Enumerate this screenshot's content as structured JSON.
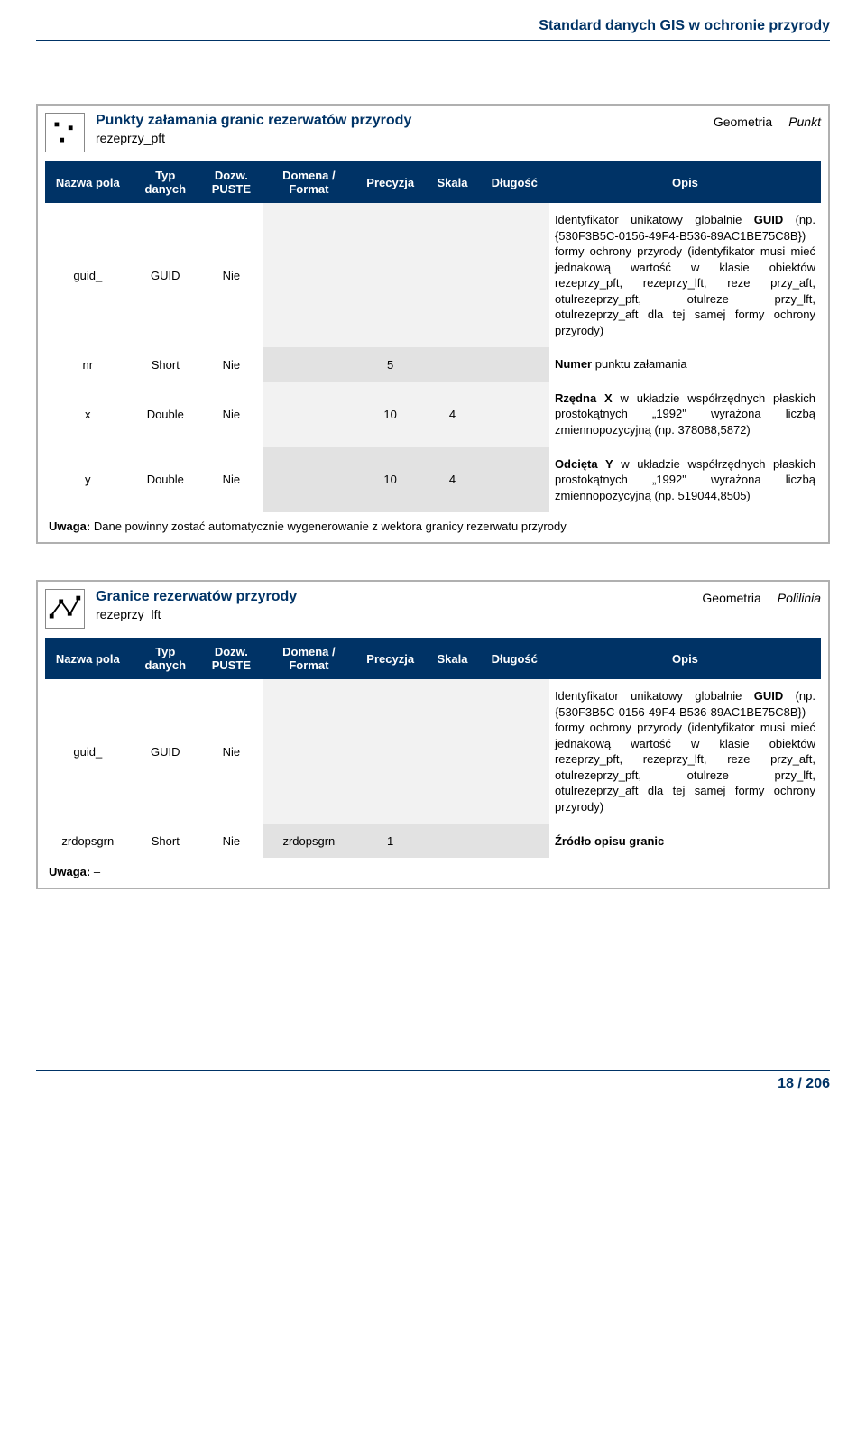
{
  "header": {
    "title": "Standard danych GIS w ochronie przyrody"
  },
  "footer": {
    "page": "18 / 206"
  },
  "columns": {
    "nazwa": "Nazwa pola",
    "typ": "Typ danych",
    "dozw": "Dozw. PUSTE",
    "domena": "Domena / Format",
    "precyzja": "Precyzja",
    "skala": "Skala",
    "dlugosc": "Długość",
    "opis": "Opis"
  },
  "geom_word": "Geometria",
  "sections": [
    {
      "icon": "point",
      "title": "Punkty załamania granic rezerwatów przyrody",
      "code": "rezeprzy_pft",
      "geom_type": "Punkt",
      "rows": [
        {
          "nazwa": "guid_",
          "typ": "GUID",
          "dozw": "Nie",
          "domena": "",
          "precyzja": "",
          "skala": "",
          "dlugosc": "",
          "opis_html": "Identyfikator unikatowy globalnie <b>GUID</b> (np. {530F3B5C-0156-49F4-B536-89AC1BE75C8B}) formy ochrony przyrody (identyfikator musi mieć jednakową wartość w klasie obiektów rezeprzy_pft, rezeprzy_lft, reze przy_aft, otulrezeprzy_pft, otulreze przy_lft, otulrezeprzy_aft dla tej samej formy ochrony przyrody)"
        },
        {
          "nazwa": "nr",
          "typ": "Short",
          "dozw": "Nie",
          "domena": "",
          "precyzja": "5",
          "skala": "",
          "dlugosc": "",
          "opis_html": "<b>Numer</b> punktu załamania"
        },
        {
          "nazwa": "x",
          "typ": "Double",
          "dozw": "Nie",
          "domena": "",
          "precyzja": "10",
          "skala": "4",
          "dlugosc": "",
          "opis_html": "<b>Rzędna X</b> w układzie współrzędnych płaskich prostokątnych „1992\" wyrażona liczbą zmiennopozycyjną (np. 378088,5872)"
        },
        {
          "nazwa": "y",
          "typ": "Double",
          "dozw": "Nie",
          "domena": "",
          "precyzja": "10",
          "skala": "4",
          "dlugosc": "",
          "opis_html": "<b>Odcięta Y</b> w układzie współrzędnych płaskich prostokątnych „1992\" wyrażona liczbą zmiennopozycyjną (np. 519044,8505)"
        }
      ],
      "note_label": "Uwaga:",
      "note_text": "Dane powinny zostać automatycznie wygenerowanie z wektora granicy rezerwatu przyrody"
    },
    {
      "icon": "polyline",
      "title": "Granice rezerwatów przyrody",
      "code": "rezeprzy_lft",
      "geom_type": "Polilinia",
      "rows": [
        {
          "nazwa": "guid_",
          "typ": "GUID",
          "dozw": "Nie",
          "domena": "",
          "precyzja": "",
          "skala": "",
          "dlugosc": "",
          "opis_html": "Identyfikator unikatowy globalnie <b>GUID</b> (np. {530F3B5C-0156-49F4-B536-89AC1BE75C8B}) formy ochrony przyrody (identyfikator musi mieć jednakową wartość w klasie obiektów rezeprzy_pft, rezeprzy_lft, reze przy_aft, otulrezeprzy_pft, otulreze przy_lft, otulrezeprzy_aft dla tej samej formy ochrony przyrody)"
        },
        {
          "nazwa": "zrdopsgrn",
          "typ": "Short",
          "dozw": "Nie",
          "domena": "zrdopsgrn",
          "precyzja": "1",
          "skala": "",
          "dlugosc": "",
          "opis_html": "<b>Źródło opisu granic</b>"
        }
      ],
      "note_label": "Uwaga:",
      "note_text": "–"
    }
  ],
  "colwidths": {
    "nazwa": "11%",
    "typ": "9%",
    "dozw": "8%",
    "domena": "12%",
    "precyzja": "9%",
    "skala": "7%",
    "dlugosc": "9%",
    "opis": "35%"
  },
  "colors": {
    "header_bg": "#003366",
    "header_text": "#ffffff",
    "border": "#b0b0b0",
    "shade1": "#f2f2f2",
    "shade2": "#e2e2e2"
  }
}
